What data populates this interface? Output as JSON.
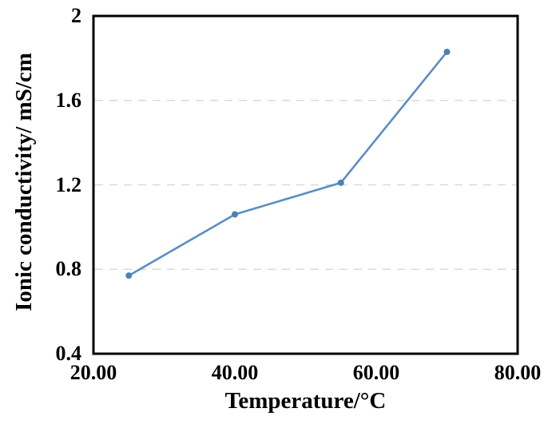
{
  "page": {
    "background_color": "#ffffff",
    "text_color": "#000000"
  },
  "chart_data": {
    "type": "line",
    "title": "",
    "xlabel": "Temperature/°C",
    "ylabel": "Ionic conductivity/ mS/cm",
    "x": [
      25,
      40,
      55,
      70
    ],
    "series": [
      {
        "values": [
          0.77,
          1.06,
          1.21,
          1.83
        ]
      }
    ],
    "xlim": [
      20,
      80
    ],
    "ylim": [
      0.4,
      2
    ],
    "x_ticks": [
      {
        "value": 20,
        "label": "20.00"
      },
      {
        "value": 40,
        "label": "40.00"
      },
      {
        "value": 60,
        "label": "60.00"
      },
      {
        "value": 80,
        "label": "80.00"
      }
    ],
    "y_ticks": [
      {
        "value": 2,
        "label": "2"
      },
      {
        "value": 1.6,
        "label": "1.6"
      },
      {
        "value": 1.2,
        "label": "1.2"
      },
      {
        "value": 0.8,
        "label": "0.8"
      },
      {
        "value": 0.4,
        "label": "0.4"
      }
    ],
    "gridlines": {
      "y_values": [
        1.6,
        1.2,
        0.8
      ],
      "style": "dashed",
      "color": "#d9d9d9"
    },
    "legend": "none",
    "line_color": "#5b8ec2",
    "marker_color": "#4a82b4",
    "frame_color": "#000000"
  }
}
